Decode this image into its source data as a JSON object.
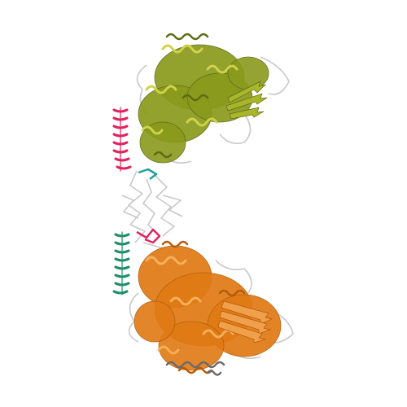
{
  "scene": {
    "background": "#ffffff",
    "domains": [
      {
        "name": "upper-domain",
        "helix_color": "#8a9a1c",
        "highlight_color": "#cfd24a",
        "dark_color": "#5d6b12"
      },
      {
        "name": "lower-domain",
        "helix_color": "#e07a14",
        "highlight_color": "#f3b05a",
        "dark_color": "#b35a0a"
      }
    ],
    "linker": {
      "color": "#c9c9c9"
    },
    "accent_helices": [
      {
        "name": "pink-helix-upper",
        "color": "#e0245e"
      },
      {
        "name": "teal-helix-lower",
        "color": "#1f8f6a"
      }
    ],
    "accent_loops": [
      {
        "name": "pink-loop-middle",
        "color": "#e0245e"
      },
      {
        "name": "teal-loop-middle",
        "color": "#1f9fa0"
      }
    ]
  }
}
